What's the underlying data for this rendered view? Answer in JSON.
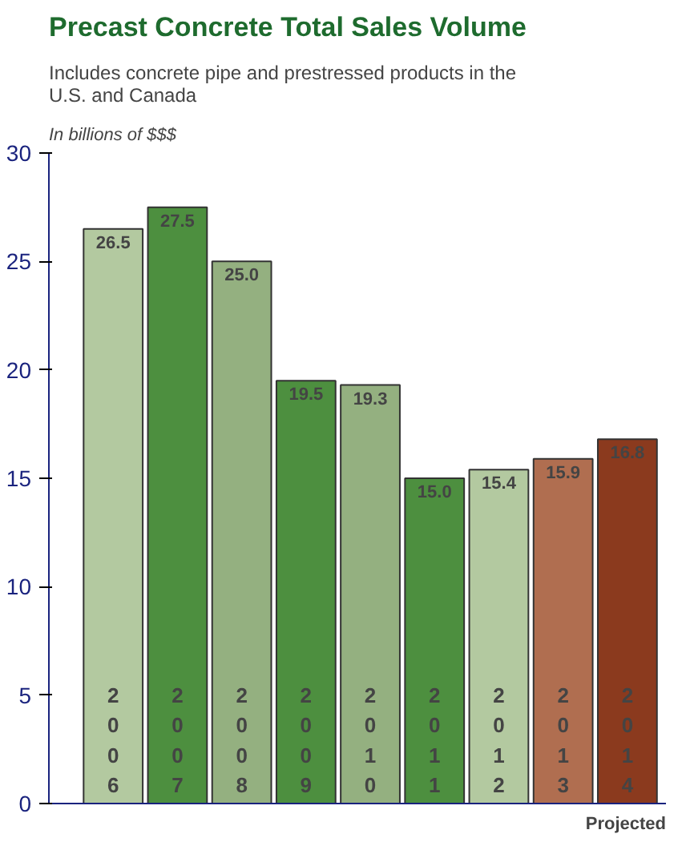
{
  "chart_data": {
    "type": "bar",
    "title": "Precast Concrete Total Sales Volume",
    "subtitle": "Includes concrete pipe and prestressed products in the U.S. and Canada",
    "annotations": [
      "In billions of $$$",
      "Projected"
    ],
    "categories": [
      "2006",
      "2007",
      "2008",
      "2009",
      "2010",
      "2011",
      "2012",
      "2013",
      "2014"
    ],
    "values": [
      26.5,
      27.5,
      25.0,
      19.5,
      19.3,
      15.0,
      15.4,
      15.9,
      16.8
    ],
    "value_labels": [
      "26.5",
      "27.5",
      "25.0",
      "19.5",
      "19.3",
      "15.0",
      "15.4",
      "15.9",
      "16.8"
    ],
    "colors": [
      "#b3c9a0",
      "#4d8f3f",
      "#94b080",
      "#4d8f3f",
      "#94b080",
      "#4d8f3f",
      "#b3c9a0",
      "#b06e50",
      "#8b3a1e"
    ],
    "ylim": [
      0,
      30
    ],
    "yticks": [
      0,
      5,
      10,
      15,
      20,
      25,
      30
    ],
    "grid": false
  }
}
